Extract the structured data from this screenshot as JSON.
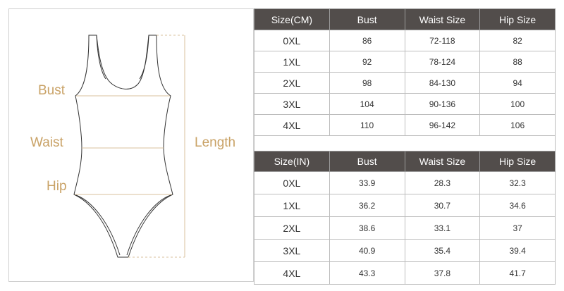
{
  "figure": {
    "labels": {
      "bust": "Bust",
      "waist": "Waist",
      "hip": "Hip",
      "length": "Length"
    },
    "accent_color": "#c9a266",
    "outline_color": "#333333"
  },
  "header_color": "#524d4b",
  "tables": {
    "cm": {
      "headers": [
        "Size(CM)",
        "Bust",
        "Waist Size",
        "Hip Size"
      ],
      "rows": [
        [
          "0XL",
          "86",
          "72-118",
          "82"
        ],
        [
          "1XL",
          "92",
          "78-124",
          "88"
        ],
        [
          "2XL",
          "98",
          "84-130",
          "94"
        ],
        [
          "3XL",
          "104",
          "90-136",
          "100"
        ],
        [
          "4XL",
          "110",
          "96-142",
          "106"
        ]
      ]
    },
    "in": {
      "headers": [
        "Size(IN)",
        "Bust",
        "Waist Size",
        "Hip Size"
      ],
      "rows": [
        [
          "0XL",
          "33.9",
          "28.3",
          "32.3"
        ],
        [
          "1XL",
          "36.2",
          "30.7",
          "34.6"
        ],
        [
          "2XL",
          "38.6",
          "33.1",
          "37"
        ],
        [
          "3XL",
          "40.9",
          "35.4",
          "39.4"
        ],
        [
          "4XL",
          "43.3",
          "37.8",
          "41.7"
        ]
      ]
    }
  }
}
